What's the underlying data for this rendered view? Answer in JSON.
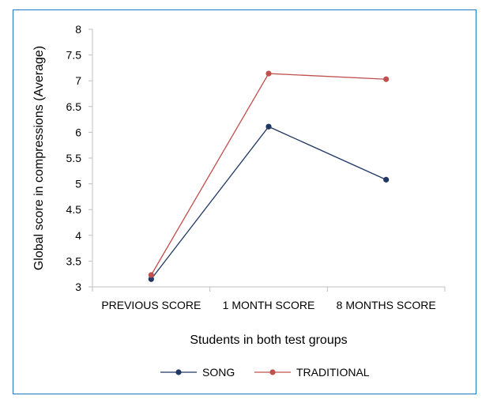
{
  "chart_data": {
    "type": "line",
    "categories": [
      "PREVIOUS SCORE",
      "1 MONTH SCORE",
      "8 MONTHS SCORE"
    ],
    "series": [
      {
        "name": "SONG",
        "values": [
          3.15,
          6.11,
          5.08
        ],
        "color": "#1f3864"
      },
      {
        "name": "TRADITIONAL",
        "values": [
          3.23,
          7.14,
          7.03
        ],
        "color": "#c0504d"
      }
    ],
    "xlabel": "Students in both test groups",
    "ylabel": "Global score in compressions (Average)",
    "ylim": [
      3,
      8
    ],
    "yticks": [
      "3",
      "3.5",
      "4",
      "4.5",
      "5",
      "5.5",
      "6",
      "6.5",
      "7",
      "7.5",
      "8"
    ],
    "grid": false,
    "legend_position": "bottom"
  }
}
